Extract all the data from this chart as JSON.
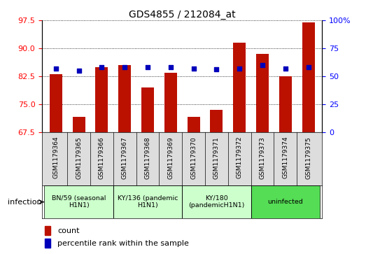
{
  "title": "GDS4855 / 212084_at",
  "samples": [
    "GSM1179364",
    "GSM1179365",
    "GSM1179366",
    "GSM1179367",
    "GSM1179368",
    "GSM1179369",
    "GSM1179370",
    "GSM1179371",
    "GSM1179372",
    "GSM1179373",
    "GSM1179374",
    "GSM1179375"
  ],
  "counts": [
    83.0,
    71.5,
    85.0,
    85.5,
    79.5,
    83.5,
    71.5,
    73.5,
    91.5,
    88.5,
    82.5,
    97.0
  ],
  "percentiles": [
    57,
    55,
    58,
    58,
    58,
    58,
    57,
    56,
    57,
    60,
    57,
    58
  ],
  "ylim_left": [
    67.5,
    97.5
  ],
  "ylim_right": [
    0,
    100
  ],
  "yticks_left": [
    67.5,
    75.0,
    82.5,
    90.0,
    97.5
  ],
  "yticks_right": [
    0,
    25,
    50,
    75,
    100
  ],
  "bar_color": "#bb1100",
  "dot_color": "#0000bb",
  "groups": [
    {
      "label": "BN/59 (seasonal\nH1N1)",
      "start": 0,
      "end": 3,
      "color": "#ccffcc"
    },
    {
      "label": "KY/136 (pandemic\nH1N1)",
      "start": 3,
      "end": 6,
      "color": "#ccffcc"
    },
    {
      "label": "KY/180\n(pandemicH1N1)",
      "start": 6,
      "end": 9,
      "color": "#ccffcc"
    },
    {
      "label": "uninfected",
      "start": 9,
      "end": 12,
      "color": "#55dd55"
    }
  ],
  "legend_count_label": "count",
  "legend_percentile_label": "percentile rank within the sample",
  "infection_label": "infection"
}
